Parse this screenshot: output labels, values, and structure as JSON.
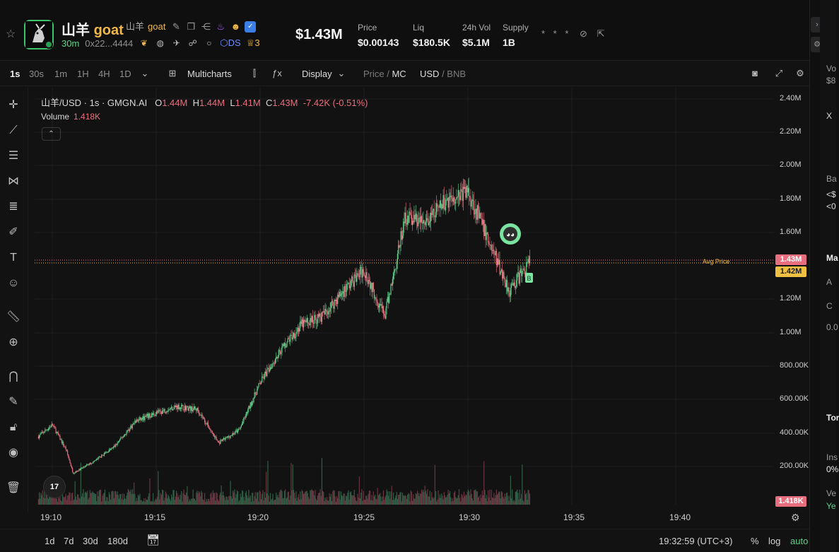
{
  "header": {
    "token_name_cn": "山羊",
    "token_name_en": "goat",
    "token_sub_cn": "山羊",
    "token_sub_en": "goat",
    "age": "30m",
    "address": "0x22...4444",
    "ds_label": "DS",
    "holders_count": "3",
    "market_cap": "$1.43M",
    "stats": [
      {
        "label": "Price",
        "value": "$0.00143"
      },
      {
        "label": "Liq",
        "value": "$180.5K"
      },
      {
        "label": "24h Vol",
        "value": "$5.1M"
      },
      {
        "label": "Supply",
        "value": "1B"
      }
    ],
    "masked": "* * *"
  },
  "toolbar": {
    "timeframes": [
      "1s",
      "30s",
      "1m",
      "1H",
      "4H",
      "1D"
    ],
    "active_timeframe": "1s",
    "multicharts": "Multicharts",
    "display": "Display",
    "price_label": "Price",
    "mc_label": "MC",
    "usd_label": "USD",
    "bnb_label": "BNB"
  },
  "legend": {
    "symbol": "山羊/USD · 1s · GMGN.AI",
    "o_label": "O",
    "o": "1.44M",
    "h_label": "H",
    "h": "1.44M",
    "l_label": "L",
    "l": "1.41M",
    "c_label": "C",
    "c": "1.43M",
    "change": "-7.42K (-0.51%)",
    "volume_label": "Volume",
    "volume": "1.418K"
  },
  "axis": {
    "y_labels": [
      "2.40M",
      "2.20M",
      "2.00M",
      "1.80M",
      "1.60M",
      "1.20M",
      "1.00M",
      "800.00K",
      "600.00K",
      "400.00K",
      "200.00K"
    ],
    "x_labels": [
      "19:10",
      "19:15",
      "19:20",
      "19:25",
      "19:30",
      "19:35",
      "19:40"
    ],
    "price_tag": "1.43M",
    "avg_tag": "1.42M",
    "volume_tag": "1.418K",
    "avg_label": "Avg Price"
  },
  "chart_data": {
    "type": "candlestick",
    "x_start": "19:09",
    "x_end": "19:33",
    "ylim": [
      0,
      2400000
    ],
    "close_curve_anchors": [
      [
        "19:09:20",
        380000
      ],
      [
        "19:10:00",
        450000
      ],
      [
        "19:10:40",
        300000
      ],
      [
        "19:11:00",
        160000
      ],
      [
        "19:12:00",
        230000
      ],
      [
        "19:13:00",
        320000
      ],
      [
        "19:14:00",
        470000
      ],
      [
        "19:15:00",
        520000
      ],
      [
        "19:16:00",
        560000
      ],
      [
        "19:17:00",
        540000
      ],
      [
        "19:18:00",
        340000
      ],
      [
        "19:19:00",
        420000
      ],
      [
        "19:20:00",
        700000
      ],
      [
        "19:21:00",
        900000
      ],
      [
        "19:22:00",
        1050000
      ],
      [
        "19:23:00",
        1100000
      ],
      [
        "19:24:00",
        1250000
      ],
      [
        "19:25:00",
        1380000
      ],
      [
        "19:26:00",
        1100000
      ],
      [
        "19:27:00",
        1700000
      ],
      [
        "19:28:00",
        1650000
      ],
      [
        "19:29:00",
        1800000
      ],
      [
        "19:30:00",
        1850000
      ],
      [
        "19:31:00",
        1550000
      ],
      [
        "19:32:00",
        1250000
      ],
      [
        "19:32:59",
        1430000
      ]
    ],
    "last_close": 1430000,
    "avg_price": 1420000
  },
  "bottom": {
    "ranges": [
      "1d",
      "7d",
      "30d",
      "180d"
    ],
    "time": "19:32:59 (UTC+3)",
    "percent": "%",
    "log": "log",
    "auto": "auto"
  },
  "right_panel": [
    "Vo",
    "$8",
    "X",
    "Ba",
    "<$",
    "<0",
    "Ma",
    "A",
    "C",
    "0.0",
    "Tor",
    "Ins",
    "0%",
    "Ve",
    "Ye"
  ],
  "logo_text": "17"
}
